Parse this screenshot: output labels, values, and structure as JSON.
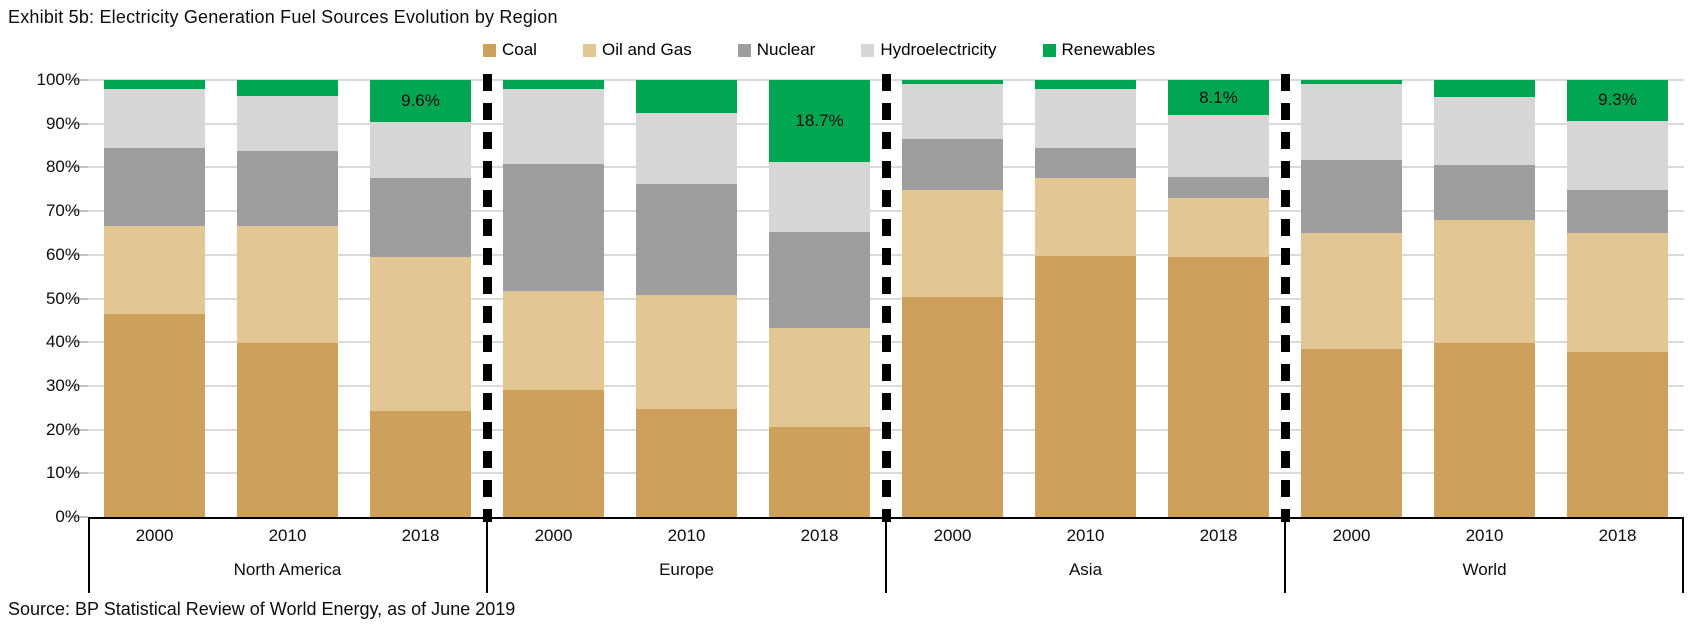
{
  "title": "Exhibit 5b: Electricity Generation Fuel Sources Evolution by Region",
  "source": "Source: BP Statistical Review of World Energy, as of June 2019",
  "legend": [
    {
      "label": "Coal"
    },
    {
      "label": "Oil and Gas"
    },
    {
      "label": "Nuclear"
    },
    {
      "label": "Hydroelectricity"
    },
    {
      "label": "Renewables"
    }
  ],
  "colors": {
    "Coal": "#CDA05C",
    "Oil and Gas": "#E2C794",
    "Nuclear": "#9E9E9E",
    "Hydroelectricity": "#D6D6D6",
    "Renewables": "#00A651",
    "gridline": "#DADADA",
    "axis": "#000000"
  },
  "y_axis": {
    "ticks": [
      "100%",
      "90%",
      "80%",
      "70%",
      "60%",
      "50%",
      "40%",
      "30%",
      "20%",
      "10%",
      "0%"
    ],
    "min": 0,
    "max": 100
  },
  "chart_data": {
    "type": "bar",
    "stacked": true,
    "unit": "percent of electricity generation",
    "title": "Exhibit 5b: Electricity Generation Fuel Sources Evolution by Region",
    "ylim": [
      0,
      100
    ],
    "grid": true,
    "legend_position": "top-center",
    "series_order": [
      "Coal",
      "Oil and Gas",
      "Nuclear",
      "Hydroelectricity",
      "Renewables"
    ],
    "groups": [
      {
        "region": "North America",
        "years": [
          "2000",
          "2010",
          "2018"
        ],
        "values": {
          "Coal": [
            46.4,
            39.9,
            24.3
          ],
          "Oil and Gas": [
            20.3,
            26.6,
            35.3
          ],
          "Nuclear": [
            17.8,
            17.2,
            17.9
          ],
          "Hydroelectricity": [
            13.5,
            12.6,
            12.9
          ],
          "Renewables": [
            2.0,
            3.7,
            9.6
          ]
        },
        "annotations": [
          {
            "year": "2018",
            "series": "Renewables",
            "text": "9.6%"
          }
        ]
      },
      {
        "region": "Europe",
        "years": [
          "2000",
          "2010",
          "2018"
        ],
        "values": {
          "Coal": [
            29.0,
            24.8,
            20.5
          ],
          "Oil and Gas": [
            22.8,
            26.0,
            22.7
          ],
          "Nuclear": [
            29.0,
            25.3,
            22.1
          ],
          "Hydroelectricity": [
            17.2,
            16.4,
            16.0
          ],
          "Renewables": [
            2.0,
            7.5,
            18.7
          ]
        },
        "annotations": [
          {
            "year": "2018",
            "series": "Renewables",
            "text": "18.7%"
          }
        ]
      },
      {
        "region": "Asia",
        "years": [
          "2000",
          "2010",
          "2018"
        ],
        "values": {
          "Coal": [
            50.4,
            59.8,
            59.6
          ],
          "Oil and Gas": [
            24.4,
            17.7,
            13.4
          ],
          "Nuclear": [
            11.7,
            6.9,
            4.8
          ],
          "Hydroelectricity": [
            12.5,
            13.6,
            14.1
          ],
          "Renewables": [
            1.0,
            2.0,
            8.1
          ]
        },
        "annotations": [
          {
            "year": "2018",
            "series": "Renewables",
            "text": "8.1%"
          }
        ]
      },
      {
        "region": "World",
        "years": [
          "2000",
          "2010",
          "2018"
        ],
        "values": {
          "Coal": [
            38.4,
            39.9,
            37.8
          ],
          "Oil and Gas": [
            26.6,
            28.0,
            27.2
          ],
          "Nuclear": [
            16.7,
            12.6,
            9.9
          ],
          "Hydroelectricity": [
            17.3,
            15.7,
            15.8
          ],
          "Renewables": [
            1.0,
            3.8,
            9.3
          ]
        },
        "annotations": [
          {
            "year": "2018",
            "series": "Renewables",
            "text": "9.3%"
          }
        ]
      }
    ]
  }
}
